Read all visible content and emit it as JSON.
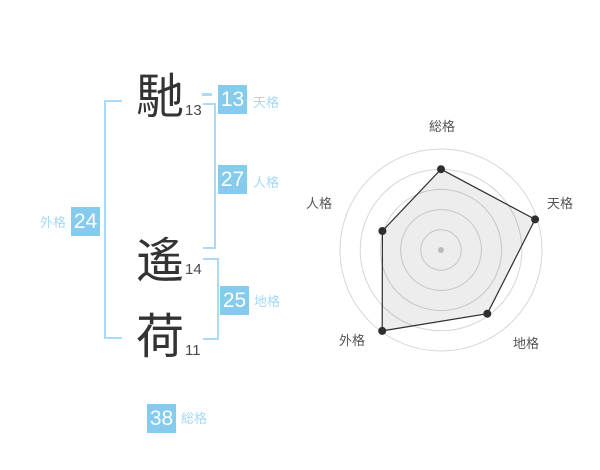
{
  "name_display": {
    "characters": [
      {
        "char": "馳",
        "strokes": "13"
      },
      {
        "char": "遙",
        "strokes": "14"
      },
      {
        "char": "荷",
        "strokes": "11"
      }
    ],
    "kaku": [
      {
        "key": "tenkaku",
        "value": "13",
        "label": "天格"
      },
      {
        "key": "jinkaku",
        "value": "27",
        "label": "人格"
      },
      {
        "key": "chikaku",
        "value": "25",
        "label": "地格"
      },
      {
        "key": "gaikaku",
        "value": "24",
        "label": "外格"
      },
      {
        "key": "soukaku",
        "value": "38",
        "label": "総格"
      }
    ]
  },
  "chart_data": {
    "type": "radar",
    "axes": [
      "総格",
      "天格",
      "地格",
      "外格",
      "人格"
    ],
    "values": [
      80,
      98,
      78,
      99,
      61
    ],
    "axis_max": 100,
    "rings": 5,
    "start_angle_deg": 0,
    "direction": "clockwise",
    "title": "",
    "legend": false,
    "grid": "concentric-circles",
    "center_dot": true
  },
  "colors": {
    "badge_blue": "#85cbee",
    "label_blue": "#a5d9f5",
    "bracket_blue": "#a9dbf6",
    "kanji_ink": "#333333",
    "radar_ring": "#d6d6d6",
    "radar_line": "#2e2e2e",
    "radar_dot": "#2e2e2e",
    "radar_fill": "rgba(0,0,0,0.07)",
    "radar_label": "#555555",
    "center_dot": "#c9c9c9"
  }
}
